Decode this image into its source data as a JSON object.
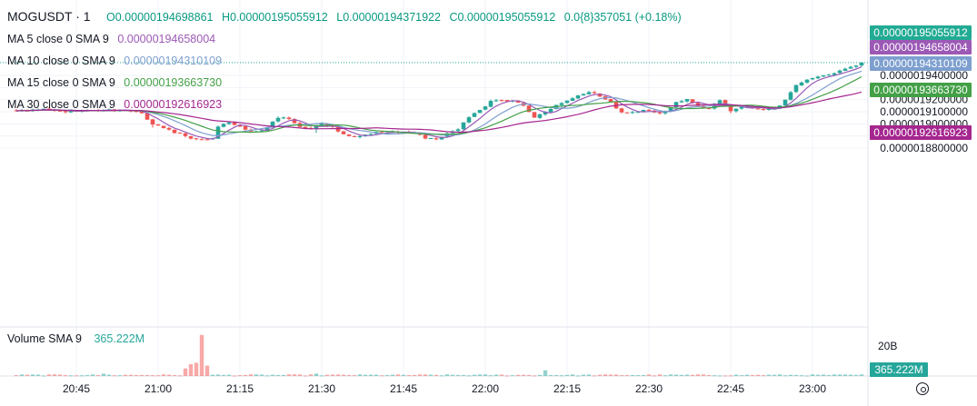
{
  "symbol": "MOGUSDT · 1",
  "ohlc": {
    "open": "O0.00000194698861",
    "high": "H0.00000195055912",
    "low": "L0.00000194371922",
    "close": "C0.00000195055912",
    "change": "0.0{8}357051 (+0.18%)"
  },
  "indicators": [
    {
      "label": "MA 5 close 0 SMA 9",
      "value": "0.00000194658004",
      "color": "#9c59b6"
    },
    {
      "label": "MA 10 close 0 SMA 9",
      "value": "0.00000194310109",
      "color": "#7d9fcf"
    },
    {
      "label": "MA 15 close 0 SMA 9",
      "value": "0.00000193663730",
      "color": "#43a047"
    },
    {
      "label": "MA 30 close 0 SMA 9",
      "value": "0.00000192616923",
      "color": "#a5268f"
    }
  ],
  "volume": {
    "label": "Volume SMA 9",
    "value": "365.222M",
    "axis_label": "20B",
    "badge": "365.222M",
    "color": "#26a69a"
  },
  "price_badges": [
    {
      "value": "0.00000195055912",
      "price": 1.95055912e-06,
      "color": "#22ab94"
    },
    {
      "value": "0.00000194658004",
      "price": 1.94658004e-06,
      "color": "#9c59b6"
    },
    {
      "value": "0.00000194310109",
      "price": 1.94310109e-06,
      "color": "#7d9fcf"
    },
    {
      "value": "0.00000193663730",
      "price": 1.9366373e-06,
      "color": "#43a047"
    },
    {
      "value": "0.00000192616923",
      "price": 1.92616923e-06,
      "color": "#a5268f"
    }
  ],
  "chart_data": {
    "type": "candlestick",
    "y_ticks": [
      "0.0000019400000",
      "0.0000019300000",
      "0.0000019200000",
      "0.0000019100000",
      "0.0000019000000",
      "0.0000018900000",
      "0.0000018800000"
    ],
    "y_tick_values": [
      1.94e-06,
      1.93e-06,
      1.92e-06,
      1.91e-06,
      1.9e-06,
      1.89e-06,
      1.88e-06
    ],
    "x_ticks": [
      "20:45",
      "21:00",
      "21:15",
      "21:30",
      "21:45",
      "22:00",
      "22:15",
      "22:30",
      "22:45",
      "23:00"
    ],
    "x_tick_minutes": [
      0,
      15,
      30,
      45,
      60,
      75,
      90,
      105,
      120,
      135
    ],
    "candle_interval_minutes": 1,
    "close_keyframes": [
      [
        -11,
        1.9107
      ],
      [
        -7,
        1.9118
      ],
      [
        -3,
        1.9105
      ],
      [
        0,
        1.9102
      ],
      [
        5,
        1.9113
      ],
      [
        9,
        1.9115
      ],
      [
        11,
        1.9102
      ],
      [
        12,
        1.9088
      ],
      [
        14,
        1.8995
      ],
      [
        16,
        1.8965
      ],
      [
        18,
        1.8925
      ],
      [
        20,
        1.89
      ],
      [
        22,
        1.8875
      ],
      [
        24,
        1.8872
      ],
      [
        25,
        1.888
      ],
      [
        26,
        1.8978
      ],
      [
        28,
        1.9012
      ],
      [
        30,
        1.8978
      ],
      [
        32,
        1.8938
      ],
      [
        34,
        1.8945
      ],
      [
        35,
        1.897
      ],
      [
        37,
        1.905
      ],
      [
        39,
        1.904
      ],
      [
        41,
        1.8975
      ],
      [
        43,
        1.896
      ],
      [
        45,
        1.9005
      ],
      [
        47,
        1.8975
      ],
      [
        49,
        1.8915
      ],
      [
        51,
        1.8892
      ],
      [
        53,
        1.8912
      ],
      [
        56,
        1.893
      ],
      [
        60,
        1.8935
      ],
      [
        62,
        1.8925
      ],
      [
        64,
        1.888
      ],
      [
        66,
        1.8873
      ],
      [
        68,
        1.8922
      ],
      [
        70,
        1.8955
      ],
      [
        72,
        1.9055
      ],
      [
        74,
        1.9115
      ],
      [
        76,
        1.919
      ],
      [
        78,
        1.9196
      ],
      [
        80,
        1.9192
      ],
      [
        82,
        1.915
      ],
      [
        84,
        1.9052
      ],
      [
        86,
        1.91
      ],
      [
        88,
        1.9157
      ],
      [
        90,
        1.9192
      ],
      [
        92,
        1.9235
      ],
      [
        94,
        1.9262
      ],
      [
        96,
        1.9225
      ],
      [
        98,
        1.9182
      ],
      [
        100,
        1.9095
      ],
      [
        102,
        1.9098
      ],
      [
        104,
        1.9115
      ],
      [
        106,
        1.9095
      ],
      [
        108,
        1.91
      ],
      [
        110,
        1.918
      ],
      [
        112,
        1.9205
      ],
      [
        114,
        1.9148
      ],
      [
        116,
        1.9125
      ],
      [
        118,
        1.9195
      ],
      [
        120,
        1.9105
      ],
      [
        122,
        1.9145
      ],
      [
        124,
        1.913
      ],
      [
        126,
        1.9115
      ],
      [
        128,
        1.9125
      ],
      [
        130,
        1.92
      ],
      [
        132,
        1.932
      ],
      [
        134,
        1.9365
      ],
      [
        136,
        1.939
      ],
      [
        138,
        1.9405
      ],
      [
        140,
        1.944
      ],
      [
        142,
        1.947
      ],
      [
        143,
        1.9481
      ],
      [
        144,
        1.9506
      ]
    ],
    "close_unit": 1e-06,
    "ma_periods": [
      5,
      10,
      15,
      30
    ],
    "volume_max": 20000000000,
    "volume_spikes": [
      [
        23,
        0.87
      ],
      [
        22,
        0.28
      ],
      [
        21,
        0.25
      ],
      [
        20,
        0.16
      ],
      [
        24,
        0.22
      ],
      [
        86,
        0.12
      ],
      [
        5,
        0.05
      ],
      [
        44,
        0.05
      ]
    ],
    "grid": true
  }
}
